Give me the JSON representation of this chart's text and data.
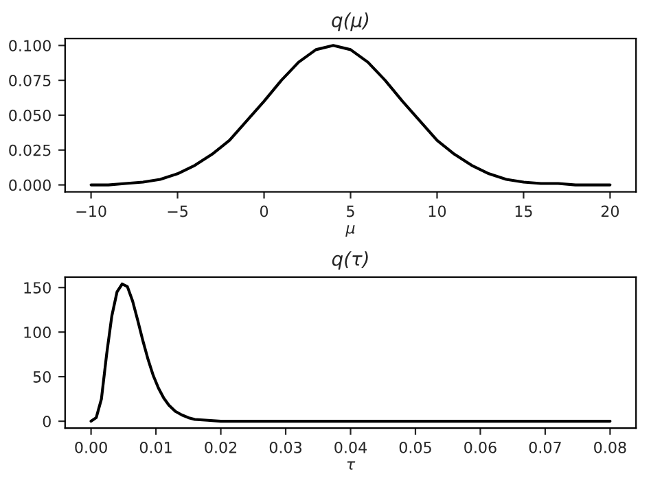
{
  "chart_data": [
    {
      "type": "line",
      "title": "q(μ)",
      "xlabel": "μ",
      "x": [
        -10,
        -9,
        -8,
        -7,
        -6,
        -5,
        -4,
        -3,
        -2,
        -1,
        0,
        1,
        2,
        3,
        4,
        5,
        6,
        7,
        8,
        9,
        10,
        11,
        12,
        13,
        14,
        15,
        16,
        17,
        18,
        19,
        20
      ],
      "series": [
        {
          "color": "#000000",
          "values": [
            0.0,
            0.0,
            0.001,
            0.002,
            0.004,
            0.008,
            0.014,
            0.022,
            0.032,
            0.046,
            0.06,
            0.075,
            0.088,
            0.097,
            0.1,
            0.097,
            0.088,
            0.075,
            0.06,
            0.046,
            0.032,
            0.022,
            0.014,
            0.008,
            0.004,
            0.002,
            0.001,
            0.001,
            0.0,
            0.0,
            0.0
          ]
        }
      ],
      "xlim": [
        -11.5,
        21.5
      ],
      "ylim": [
        -0.005,
        0.105
      ],
      "xticks": [
        {
          "value": -10,
          "label": "−10"
        },
        {
          "value": -5,
          "label": "−5"
        },
        0,
        5,
        10,
        15,
        20
      ],
      "yticks": [
        {
          "value": 0,
          "label": "0.000"
        },
        {
          "value": 0.025,
          "label": "0.025"
        },
        {
          "value": 0.05,
          "label": "0.050"
        },
        {
          "value": 0.075,
          "label": "0.075"
        },
        {
          "value": 0.1,
          "label": "0.100"
        }
      ],
      "grid": false,
      "legend": false
    },
    {
      "type": "line",
      "title": "q(τ)",
      "xlabel": "τ",
      "x": [
        0,
        0.0008,
        0.0016,
        0.0024,
        0.0032,
        0.004,
        0.0048,
        0.0056,
        0.0064,
        0.0072,
        0.008,
        0.0088,
        0.0096,
        0.0104,
        0.0112,
        0.012,
        0.013,
        0.014,
        0.015,
        0.016,
        0.018,
        0.02,
        0.025,
        0.03,
        0.04,
        0.05,
        0.06,
        0.07,
        0.08
      ],
      "series": [
        {
          "color": "#000000",
          "values": [
            0,
            4,
            25,
            75,
            118,
            145,
            154,
            151,
            135,
            113,
            90,
            69,
            51,
            37,
            26,
            18,
            11,
            7,
            4,
            2,
            1,
            0,
            0,
            0,
            0,
            0,
            0,
            0,
            0
          ]
        }
      ],
      "xlim": [
        -0.004,
        0.084
      ],
      "ylim": [
        -7.7,
        161.7
      ],
      "xticks": [
        {
          "value": 0,
          "label": "0.00"
        },
        {
          "value": 0.01,
          "label": "0.01"
        },
        {
          "value": 0.02,
          "label": "0.02"
        },
        {
          "value": 0.03,
          "label": "0.03"
        },
        {
          "value": 0.04,
          "label": "0.04"
        },
        {
          "value": 0.05,
          "label": "0.05"
        },
        {
          "value": 0.06,
          "label": "0.06"
        },
        {
          "value": 0.07,
          "label": "0.07"
        },
        {
          "value": 0.08,
          "label": "0.08"
        }
      ],
      "yticks": [
        0,
        50,
        100,
        150
      ],
      "grid": false,
      "legend": false
    }
  ]
}
